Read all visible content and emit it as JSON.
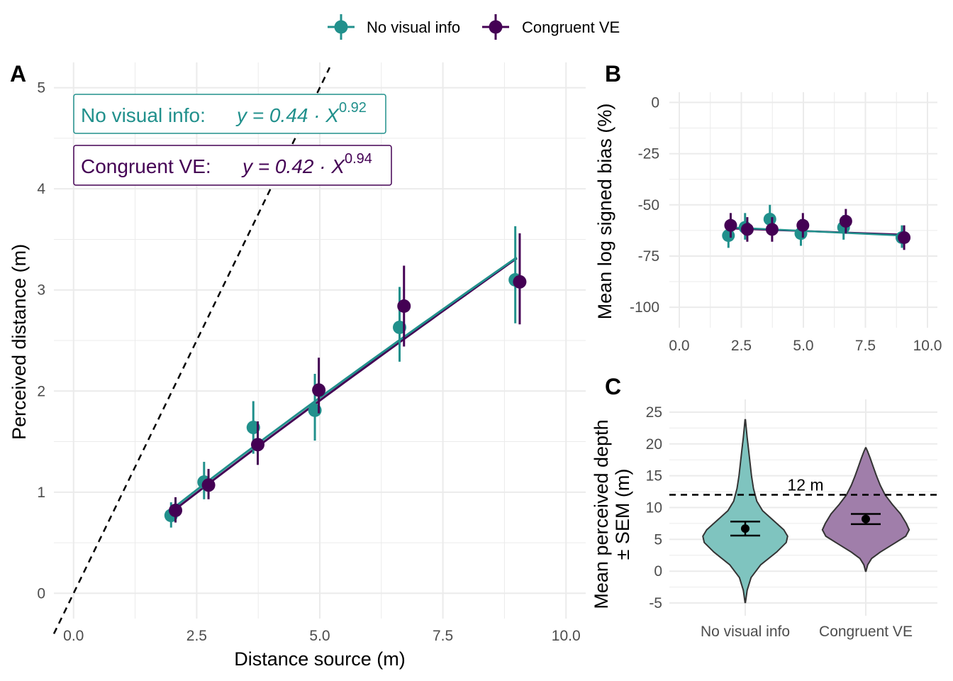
{
  "colors": {
    "no_visual": "#21908c",
    "congruent": "#440154",
    "violin_no_visual": "#7fc4bf",
    "violin_congruent": "#a07eaa"
  },
  "legend": {
    "items": [
      {
        "label": "No visual info",
        "color": "#21908c"
      },
      {
        "label": "Congruent VE",
        "color": "#440154"
      }
    ]
  },
  "chart_data": [
    {
      "panel": "A",
      "type": "scatter",
      "xlabel": "Distance source (m)",
      "ylabel": "Perceived distance (m)",
      "xlim": [
        -0.4,
        10.4
      ],
      "ylim": [
        -0.25,
        5.25
      ],
      "x_ticks": [
        "0.0",
        "2.5",
        "5.0",
        "7.5",
        "10.0"
      ],
      "y_ticks": [
        "0",
        "1",
        "2",
        "3",
        "4",
        "5"
      ],
      "reference_line": {
        "style": "dashed",
        "slope": 1,
        "intercept": 0
      },
      "annotations": [
        {
          "label": "No visual info:",
          "equation": "y = 0.44 · X",
          "exponent": "0.92",
          "series": "No visual info"
        },
        {
          "label": "Congruent VE:",
          "equation": "y = 0.42 · X",
          "exponent": "0.94",
          "series": "Congruent VE"
        }
      ],
      "series": [
        {
          "name": "No visual info",
          "points": [
            {
              "x": 1.98,
              "y": 0.77,
              "ylo": 0.65,
              "yhi": 0.9
            },
            {
              "x": 2.65,
              "y": 1.1,
              "ylo": 0.93,
              "yhi": 1.3
            },
            {
              "x": 3.65,
              "y": 1.64,
              "ylo": 1.38,
              "yhi": 1.9
            },
            {
              "x": 4.9,
              "y": 1.81,
              "ylo": 1.51,
              "yhi": 2.17
            },
            {
              "x": 6.62,
              "y": 2.63,
              "ylo": 2.29,
              "yhi": 3.03
            },
            {
              "x": 8.97,
              "y": 3.1,
              "ylo": 2.67,
              "yhi": 3.63
            }
          ],
          "fit": {
            "a": 0.44,
            "b": 0.92,
            "x_from": 2.0,
            "x_to": 9.0
          }
        },
        {
          "name": "Congruent VE",
          "points": [
            {
              "x": 2.07,
              "y": 0.82,
              "ylo": 0.7,
              "yhi": 0.95
            },
            {
              "x": 2.74,
              "y": 1.07,
              "ylo": 0.93,
              "yhi": 1.23
            },
            {
              "x": 3.74,
              "y": 1.47,
              "ylo": 1.27,
              "yhi": 1.7
            },
            {
              "x": 4.98,
              "y": 2.01,
              "ylo": 1.78,
              "yhi": 2.33
            },
            {
              "x": 6.71,
              "y": 2.84,
              "ylo": 2.44,
              "yhi": 3.24
            },
            {
              "x": 9.06,
              "y": 3.08,
              "ylo": 2.66,
              "yhi": 3.56
            }
          ],
          "fit": {
            "a": 0.42,
            "b": 0.94,
            "x_from": 2.0,
            "x_to": 9.0
          }
        }
      ]
    },
    {
      "panel": "B",
      "type": "scatter",
      "xlabel": "",
      "ylabel": "Mean log signed bias (%)",
      "xlim": [
        -0.4,
        10.4
      ],
      "ylim": [
        -110,
        5
      ],
      "x_ticks": [
        "0.0",
        "2.5",
        "5.0",
        "7.5",
        "10.0"
      ],
      "y_ticks": [
        "0",
        "-25",
        "-50",
        "-75",
        "-100"
      ],
      "series": [
        {
          "name": "No visual info",
          "points": [
            {
              "x": 1.98,
              "y": -65,
              "ylo": -71,
              "yhi": -59
            },
            {
              "x": 2.65,
              "y": -61,
              "ylo": -67,
              "yhi": -54
            },
            {
              "x": 3.65,
              "y": -57,
              "ylo": -64,
              "yhi": -50
            },
            {
              "x": 4.9,
              "y": -64,
              "ylo": -70,
              "yhi": -57
            },
            {
              "x": 6.62,
              "y": -61,
              "ylo": -67,
              "yhi": -55
            },
            {
              "x": 8.97,
              "y": -66,
              "ylo": -71,
              "yhi": -60
            }
          ],
          "trend": {
            "x_from": 2.0,
            "y_from": -61,
            "x_to": 9.0,
            "y_to": -65
          }
        },
        {
          "name": "Congruent VE",
          "points": [
            {
              "x": 2.07,
              "y": -60,
              "ylo": -66,
              "yhi": -54
            },
            {
              "x": 2.74,
              "y": -62,
              "ylo": -68,
              "yhi": -56
            },
            {
              "x": 3.74,
              "y": -62,
              "ylo": -68,
              "yhi": -56
            },
            {
              "x": 4.98,
              "y": -60,
              "ylo": -66,
              "yhi": -54
            },
            {
              "x": 6.71,
              "y": -58,
              "ylo": -64,
              "yhi": -52
            },
            {
              "x": 9.06,
              "y": -66,
              "ylo": -72,
              "yhi": -60
            }
          ],
          "trend": {
            "x_from": 2.0,
            "y_from": -61.5,
            "x_to": 9.0,
            "y_to": -64.5
          }
        }
      ]
    },
    {
      "panel": "C",
      "type": "violin",
      "xlabel": "",
      "ylabel_line1": "Mean perceived depth",
      "ylabel_line2": "± SEM (m)",
      "ylim": [
        -7,
        27
      ],
      "y_ticks": [
        "25",
        "20",
        "15",
        "10",
        "5",
        "0",
        "-5"
      ],
      "categories": [
        "No visual info",
        "Congruent VE"
      ],
      "reference_line": {
        "style": "dashed",
        "y": 12,
        "label": "12 m"
      },
      "groups": [
        {
          "name": "No visual info",
          "mean": 6.7,
          "sem_lo": 5.6,
          "sem_hi": 7.8,
          "density": [
            [
              -4.9,
              0.005
            ],
            [
              -3,
              0.04
            ],
            [
              -1,
              0.12
            ],
            [
              1,
              0.32
            ],
            [
              3,
              0.65
            ],
            [
              4.5,
              0.85
            ],
            [
              5.5,
              0.88
            ],
            [
              6.5,
              0.8
            ],
            [
              8,
              0.58
            ],
            [
              9.5,
              0.36
            ],
            [
              11,
              0.24
            ],
            [
              13,
              0.17
            ],
            [
              15,
              0.13
            ],
            [
              17,
              0.1
            ],
            [
              19,
              0.07
            ],
            [
              21,
              0.04
            ],
            [
              22.5,
              0.02
            ],
            [
              23.8,
              0.005
            ]
          ]
        },
        {
          "name": "Congruent VE",
          "mean": 8.2,
          "sem_lo": 7.4,
          "sem_hi": 9.0,
          "density": [
            [
              0,
              0.005
            ],
            [
              1,
              0.04
            ],
            [
              2,
              0.12
            ],
            [
              3,
              0.3
            ],
            [
              4.5,
              0.62
            ],
            [
              5.5,
              0.83
            ],
            [
              6.5,
              0.9
            ],
            [
              7.5,
              0.84
            ],
            [
              9,
              0.72
            ],
            [
              10.5,
              0.55
            ],
            [
              12,
              0.4
            ],
            [
              13.5,
              0.3
            ],
            [
              15,
              0.22
            ],
            [
              16.5,
              0.15
            ],
            [
              17.8,
              0.09
            ],
            [
              18.8,
              0.04
            ],
            [
              19.4,
              0.005
            ]
          ]
        }
      ]
    }
  ]
}
